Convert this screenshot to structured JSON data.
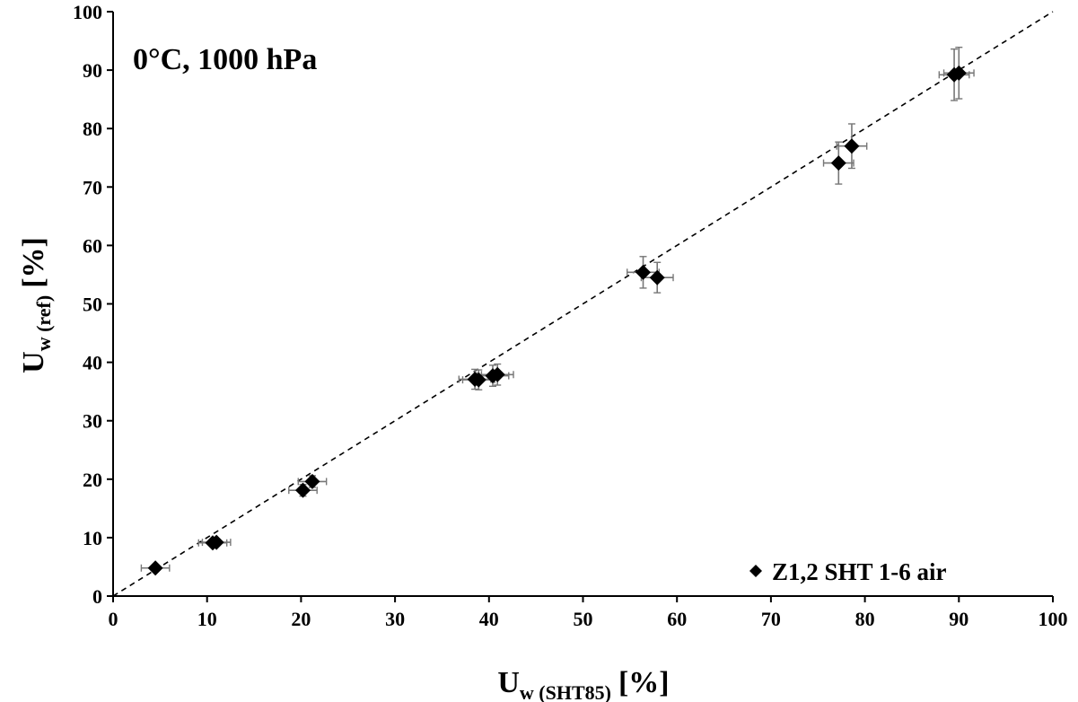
{
  "chart_data": {
    "type": "scatter",
    "annotation": "0°C, 1000 hPa",
    "xlabel": {
      "main": "U",
      "sub": "w (SHT85)",
      "unit": "[%]"
    },
    "ylabel": {
      "main": "U",
      "sub": "w (ref)",
      "unit": "[%]"
    },
    "xlim": [
      0,
      100
    ],
    "ylim": [
      0,
      100
    ],
    "xticks": [
      "0",
      "10",
      "20",
      "30",
      "40",
      "50",
      "60",
      "70",
      "80",
      "90",
      "100"
    ],
    "yticks": [
      "0",
      "10",
      "20",
      "30",
      "40",
      "50",
      "60",
      "70",
      "80",
      "90",
      "100"
    ],
    "grid": false,
    "legend_position": "bottom-right",
    "reference_line": {
      "style": "dashed",
      "from": [
        0,
        0
      ],
      "to": [
        100,
        100
      ]
    },
    "series": [
      {
        "name": "Z1,2 SHT 1-6  air",
        "marker": "diamond",
        "color": "#000000",
        "points": [
          {
            "x": 4.5,
            "y": 4.8,
            "xerr": 1.5,
            "yerr": 0.5
          },
          {
            "x": 10.6,
            "y": 9.1,
            "xerr": 1.5,
            "yerr": 0.6
          },
          {
            "x": 11.0,
            "y": 9.2,
            "xerr": 1.5,
            "yerr": 0.6
          },
          {
            "x": 20.2,
            "y": 18.1,
            "xerr": 1.5,
            "yerr": 1.0
          },
          {
            "x": 21.2,
            "y": 19.6,
            "xerr": 1.5,
            "yerr": 1.0
          },
          {
            "x": 38.5,
            "y": 37.1,
            "xerr": 1.7,
            "yerr": 1.7
          },
          {
            "x": 38.9,
            "y": 37.0,
            "xerr": 1.7,
            "yerr": 1.7
          },
          {
            "x": 40.4,
            "y": 37.7,
            "xerr": 1.7,
            "yerr": 1.8
          },
          {
            "x": 40.9,
            "y": 37.9,
            "xerr": 1.7,
            "yerr": 1.8
          },
          {
            "x": 56.4,
            "y": 55.4,
            "xerr": 1.7,
            "yerr": 2.7
          },
          {
            "x": 57.9,
            "y": 54.5,
            "xerr": 1.7,
            "yerr": 2.6
          },
          {
            "x": 77.2,
            "y": 74.1,
            "xerr": 1.6,
            "yerr": 3.6
          },
          {
            "x": 78.6,
            "y": 77.0,
            "xerr": 1.6,
            "yerr": 3.8
          },
          {
            "x": 89.5,
            "y": 89.2,
            "xerr": 1.6,
            "yerr": 4.4
          },
          {
            "x": 90.0,
            "y": 89.5,
            "xerr": 1.6,
            "yerr": 4.4
          }
        ]
      }
    ]
  }
}
